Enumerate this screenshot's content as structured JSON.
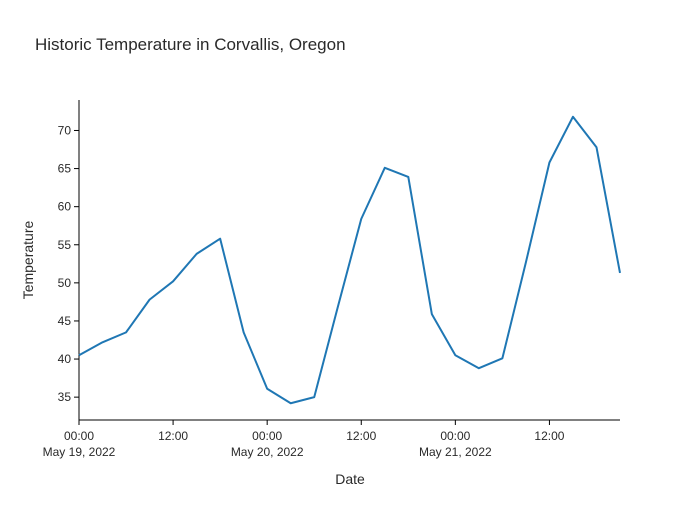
{
  "colors": {
    "series": "#1f77b4",
    "axis": "#000000",
    "text": "#2a2a2a",
    "background": "#ffffff"
  },
  "chart_data": {
    "type": "line",
    "title": "Historic Temperature in Corvallis, Oregon",
    "xlabel": "Date",
    "ylabel": "Temperature",
    "grid": false,
    "legend": "none",
    "ylim": [
      32,
      74
    ],
    "y_ticks": [
      35,
      40,
      45,
      50,
      55,
      60,
      65,
      70
    ],
    "xlim": [
      "2022-05-19 00:00",
      "2022-05-21 21:00"
    ],
    "x_ticks": [
      {
        "value": "2022-05-19 00:00",
        "time": "00:00",
        "date": "May 19, 2022"
      },
      {
        "value": "2022-05-19 12:00",
        "time": "12:00",
        "date": ""
      },
      {
        "value": "2022-05-20 00:00",
        "time": "00:00",
        "date": "May 20, 2022"
      },
      {
        "value": "2022-05-20 12:00",
        "time": "12:00",
        "date": ""
      },
      {
        "value": "2022-05-21 00:00",
        "time": "00:00",
        "date": "May 21, 2022"
      },
      {
        "value": "2022-05-21 12:00",
        "time": "12:00",
        "date": ""
      }
    ],
    "series": [
      {
        "x": [
          "2022-05-19 00:00",
          "2022-05-19 03:00",
          "2022-05-19 06:00",
          "2022-05-19 09:00",
          "2022-05-19 12:00",
          "2022-05-19 15:00",
          "2022-05-19 18:00",
          "2022-05-19 21:00",
          "2022-05-20 00:00",
          "2022-05-20 03:00",
          "2022-05-20 06:00",
          "2022-05-20 09:00",
          "2022-05-20 12:00",
          "2022-05-20 15:00",
          "2022-05-20 18:00",
          "2022-05-20 21:00",
          "2022-05-21 00:00",
          "2022-05-21 03:00",
          "2022-05-21 06:00",
          "2022-05-21 09:00",
          "2022-05-21 12:00",
          "2022-05-21 15:00",
          "2022-05-21 18:00",
          "2022-05-21 21:00"
        ],
        "values": [
          40.5,
          42.2,
          43.5,
          47.8,
          50.2,
          53.8,
          55.8,
          43.5,
          36.1,
          34.2,
          35.0,
          46.8,
          58.4,
          65.1,
          63.9,
          45.9,
          40.5,
          38.8,
          40.1,
          52.7,
          65.8,
          71.8,
          67.8,
          51.3
        ]
      }
    ],
    "x_end_value": 47.6
  }
}
